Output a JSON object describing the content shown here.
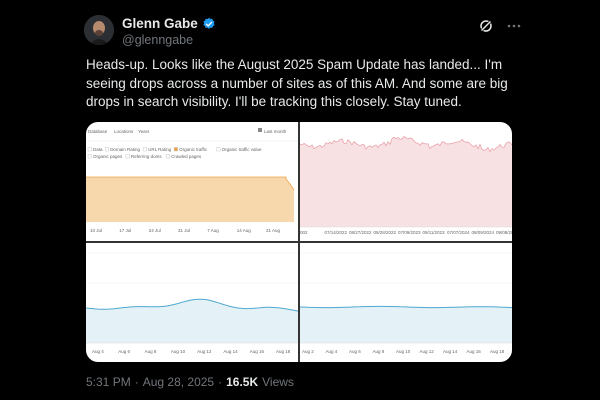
{
  "author": {
    "name": "Glenn Gabe",
    "handle": "@glenngabe"
  },
  "post": {
    "text": "Heads-up. Looks like the August 2025 Spam Update has landed... I'm seeing drops across a number of sites as of this AM. And some are big drops in search visibility. I'll be tracking this closely. Stay tuned."
  },
  "meta": {
    "time": "5:31 PM",
    "separator": "·",
    "date": "Aug 28, 2025",
    "separator2": "·",
    "views_count": "16.5K",
    "views_label": "Views"
  },
  "icons": [
    "verified-badge-icon",
    "grok-icon",
    "more-options-icon"
  ],
  "colors": {
    "verified": "#1d9bf0",
    "orange_fill": "#f7d8ad",
    "orange_line": "#f0a244",
    "pink_fill": "#f8e1e3",
    "pink_line": "#e89aa3",
    "blue_fill": "#e4f2f8",
    "blue_line": "#4ea8cf"
  },
  "panel1": {
    "toolbar": [
      "Database",
      "Locations",
      "Years",
      "Last month"
    ],
    "legend": [
      "Data",
      "Domain Rating",
      "URL Rating",
      "Organic traffic",
      "Organic traffic value",
      "Organic pages",
      "Referring doms",
      "Crawled pages"
    ],
    "ticks": [
      "10 Jul",
      "17 Jul",
      "24 Jul",
      "31 Jul",
      "7 Aug",
      "14 Aug",
      "21 Aug"
    ]
  },
  "panel2": {
    "ticks": [
      "002",
      "07/14/2022",
      "08/27/2022",
      "09/28/2022",
      "07/09/2023",
      "09/11/2023",
      "07/07/2024",
      "08/09/2024",
      "09/08/2025"
    ]
  },
  "panel3": {
    "ticks": [
      "Aug 4",
      "Aug 6",
      "Aug 8",
      "Aug 10",
      "Aug 12",
      "Aug 14",
      "Aug 16",
      "Aug 18"
    ]
  },
  "panel4": {
    "ticks": [
      "Aug 2",
      "Aug 4",
      "Aug 6",
      "Aug 8",
      "Aug 10",
      "Aug 12",
      "Aug 14",
      "Aug 16",
      "Aug 18"
    ]
  }
}
